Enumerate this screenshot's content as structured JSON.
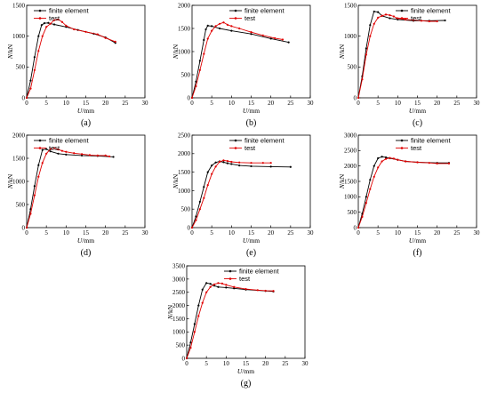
{
  "chart_data": [
    {
      "type": "line",
      "label": "(a)",
      "xlabel_var": "U",
      "xlabel_unit": "/mm",
      "ylabel_var": "N",
      "ylabel_unit": "/kN",
      "xlim": [
        0,
        30
      ],
      "ylim": [
        0,
        1500
      ],
      "xticks": [
        "0",
        "5",
        "10",
        "15",
        "20",
        "25",
        "30"
      ],
      "yticks": [
        "0",
        "500",
        "1000",
        "1500"
      ],
      "legend": "top-left",
      "series": [
        {
          "name": "finite element",
          "color": "#000000",
          "x": [
            0,
            1,
            2,
            3,
            3.8,
            4.5,
            5.5,
            7,
            10,
            13,
            17,
            20,
            22.5
          ],
          "y": [
            0,
            280,
            660,
            1000,
            1180,
            1210,
            1215,
            1190,
            1150,
            1100,
            1040,
            980,
            890
          ]
        },
        {
          "name": "test",
          "color": "#e00000",
          "x": [
            0,
            1,
            2,
            3,
            4,
            5,
            6,
            7,
            8,
            9,
            10,
            12,
            15,
            18,
            20,
            22.5
          ],
          "y": [
            0,
            150,
            450,
            760,
            1000,
            1150,
            1200,
            1260,
            1270,
            1230,
            1170,
            1110,
            1070,
            1030,
            970,
            910
          ]
        }
      ]
    },
    {
      "type": "line",
      "label": "(b)",
      "xlabel_var": "U",
      "xlabel_unit": "/mm",
      "ylabel_var": "N",
      "ylabel_unit": "/kN",
      "xlim": [
        0,
        30
      ],
      "ylim": [
        0,
        2000
      ],
      "xticks": [
        "0",
        "5",
        "10",
        "15",
        "20",
        "25",
        "30"
      ],
      "yticks": [
        "0",
        "500",
        "1000",
        "1500",
        "2000"
      ],
      "legend": "top-right",
      "series": [
        {
          "name": "finite element",
          "color": "#000000",
          "x": [
            0,
            1,
            2,
            3,
            3.5,
            4,
            5,
            7,
            10,
            15,
            20,
            24.5
          ],
          "y": [
            0,
            350,
            800,
            1250,
            1480,
            1560,
            1550,
            1500,
            1450,
            1380,
            1280,
            1200
          ]
        },
        {
          "name": "test",
          "color": "#e00000",
          "x": [
            0,
            1,
            2,
            3,
            4,
            5,
            6,
            7,
            8,
            9,
            10,
            12,
            15,
            18,
            21,
            23
          ],
          "y": [
            0,
            250,
            600,
            950,
            1280,
            1450,
            1550,
            1600,
            1630,
            1580,
            1550,
            1500,
            1420,
            1350,
            1290,
            1260
          ]
        }
      ]
    },
    {
      "type": "line",
      "label": "(c)",
      "xlabel_var": "U",
      "xlabel_unit": "/mm",
      "ylabel_var": "N",
      "ylabel_unit": "/kN",
      "xlim": [
        0,
        30
      ],
      "ylim": [
        0,
        1500
      ],
      "xticks": [
        "0",
        "5",
        "10",
        "15",
        "20",
        "25",
        "30"
      ],
      "yticks": [
        "0",
        "500",
        "1000",
        "1500"
      ],
      "legend": "top-right",
      "series": [
        {
          "name": "finite element",
          "color": "#000000",
          "x": [
            0,
            1,
            2,
            3,
            4,
            5,
            6,
            8,
            10,
            14,
            18,
            22
          ],
          "y": [
            0,
            350,
            800,
            1180,
            1400,
            1390,
            1330,
            1290,
            1270,
            1250,
            1250,
            1255
          ]
        },
        {
          "name": "test",
          "color": "#e00000",
          "x": [
            0,
            1,
            2,
            3,
            4,
            5,
            6,
            7,
            8,
            9,
            10,
            12,
            14,
            16,
            18,
            20
          ],
          "y": [
            0,
            300,
            700,
            1000,
            1200,
            1300,
            1330,
            1350,
            1340,
            1320,
            1290,
            1270,
            1260,
            1250,
            1240,
            1240
          ]
        }
      ]
    },
    {
      "type": "line",
      "label": "(d)",
      "xlabel_var": "U",
      "xlabel_unit": "/mm",
      "ylabel_var": "N",
      "ylabel_unit": "/kN",
      "xlim": [
        0,
        30
      ],
      "ylim": [
        0,
        2000
      ],
      "xticks": [
        "0",
        "5",
        "10",
        "15",
        "20",
        "25",
        "30"
      ],
      "yticks": [
        "0",
        "500",
        "1000",
        "1500",
        "2000"
      ],
      "legend": "top-left",
      "series": [
        {
          "name": "finite element",
          "color": "#000000",
          "x": [
            0,
            1,
            2,
            3,
            4,
            5,
            6,
            8,
            10,
            14,
            18,
            22
          ],
          "y": [
            0,
            400,
            900,
            1350,
            1680,
            1700,
            1650,
            1600,
            1580,
            1560,
            1550,
            1530
          ]
        },
        {
          "name": "test",
          "color": "#e00000",
          "x": [
            0,
            1,
            2,
            3,
            4,
            5,
            6,
            7,
            8,
            9,
            10,
            12,
            14,
            16,
            18,
            20,
            21
          ],
          "y": [
            0,
            300,
            700,
            1100,
            1400,
            1600,
            1700,
            1720,
            1690,
            1660,
            1640,
            1610,
            1590,
            1570,
            1560,
            1560,
            1540
          ]
        }
      ]
    },
    {
      "type": "line",
      "label": "(e)",
      "xlabel_var": "U",
      "xlabel_unit": "/mm",
      "ylabel_var": "N",
      "ylabel_unit": "/kN",
      "xlim": [
        0,
        30
      ],
      "ylim": [
        0,
        2500
      ],
      "xticks": [
        "0",
        "5",
        "10",
        "15",
        "20",
        "25",
        "30"
      ],
      "yticks": [
        "0",
        "500",
        "1000",
        "1500",
        "2000",
        "2500"
      ],
      "legend": "top-right",
      "series": [
        {
          "name": "finite element",
          "color": "#000000",
          "x": [
            0,
            1,
            2,
            3,
            4,
            5,
            6,
            7,
            8,
            9,
            10,
            12,
            15,
            20,
            25
          ],
          "y": [
            0,
            300,
            700,
            1100,
            1500,
            1680,
            1760,
            1790,
            1770,
            1740,
            1720,
            1680,
            1660,
            1650,
            1640
          ]
        },
        {
          "name": "test",
          "color": "#e00000",
          "x": [
            0,
            1,
            2,
            3,
            4,
            5,
            6,
            7,
            8,
            9,
            10,
            12,
            15,
            18,
            20
          ],
          "y": [
            0,
            200,
            500,
            800,
            1150,
            1450,
            1650,
            1780,
            1820,
            1800,
            1780,
            1760,
            1750,
            1750,
            1750
          ]
        }
      ]
    },
    {
      "type": "line",
      "label": "(f)",
      "xlabel_var": "U",
      "xlabel_unit": "/mm",
      "ylabel_var": "N",
      "ylabel_unit": "/kN",
      "xlim": [
        0,
        30
      ],
      "ylim": [
        0,
        3000
      ],
      "xticks": [
        "0",
        "5",
        "10",
        "15",
        "20",
        "25",
        "30"
      ],
      "yticks": [
        "0",
        "500",
        "1000",
        "1500",
        "2000",
        "2500",
        "3000"
      ],
      "legend": "top-right",
      "series": [
        {
          "name": "finite element",
          "color": "#000000",
          "x": [
            0,
            1,
            2,
            3,
            4,
            5,
            6,
            7,
            8,
            10,
            12,
            15,
            20,
            23
          ],
          "y": [
            0,
            450,
            1000,
            1550,
            2000,
            2250,
            2300,
            2280,
            2250,
            2200,
            2150,
            2120,
            2100,
            2100
          ]
        },
        {
          "name": "test",
          "color": "#e00000",
          "x": [
            0,
            1,
            2,
            3,
            4,
            5,
            6,
            7,
            8,
            9,
            10,
            12,
            15,
            18,
            20,
            23
          ],
          "y": [
            0,
            350,
            800,
            1250,
            1650,
            1950,
            2150,
            2230,
            2260,
            2240,
            2200,
            2150,
            2120,
            2100,
            2080,
            2080
          ]
        }
      ]
    },
    {
      "type": "line",
      "label": "(g)",
      "xlabel_var": "U",
      "xlabel_unit": "/mm",
      "ylabel_var": "N",
      "ylabel_unit": "/kN",
      "xlim": [
        0,
        30
      ],
      "ylim": [
        0,
        3500
      ],
      "xticks": [
        "0",
        "5",
        "10",
        "15",
        "20",
        "25",
        "30"
      ],
      "yticks": [
        "0",
        "500",
        "1000",
        "1500",
        "2000",
        "2500",
        "3000",
        "3500"
      ],
      "legend": "top-right",
      "series": [
        {
          "name": "finite element",
          "color": "#000000",
          "x": [
            0,
            1,
            2,
            3,
            4,
            5,
            6,
            7,
            8,
            10,
            12,
            15,
            20,
            22
          ],
          "y": [
            0,
            600,
            1300,
            2000,
            2600,
            2850,
            2820,
            2750,
            2700,
            2680,
            2650,
            2600,
            2550,
            2530
          ]
        },
        {
          "name": "test",
          "color": "#e00000",
          "x": [
            0,
            1,
            2,
            3,
            4,
            5,
            6,
            7,
            8,
            9,
            10,
            12,
            15,
            18,
            20,
            22
          ],
          "y": [
            0,
            400,
            1000,
            1600,
            2100,
            2500,
            2700,
            2800,
            2850,
            2830,
            2780,
            2700,
            2620,
            2580,
            2560,
            2550
          ]
        }
      ]
    }
  ]
}
